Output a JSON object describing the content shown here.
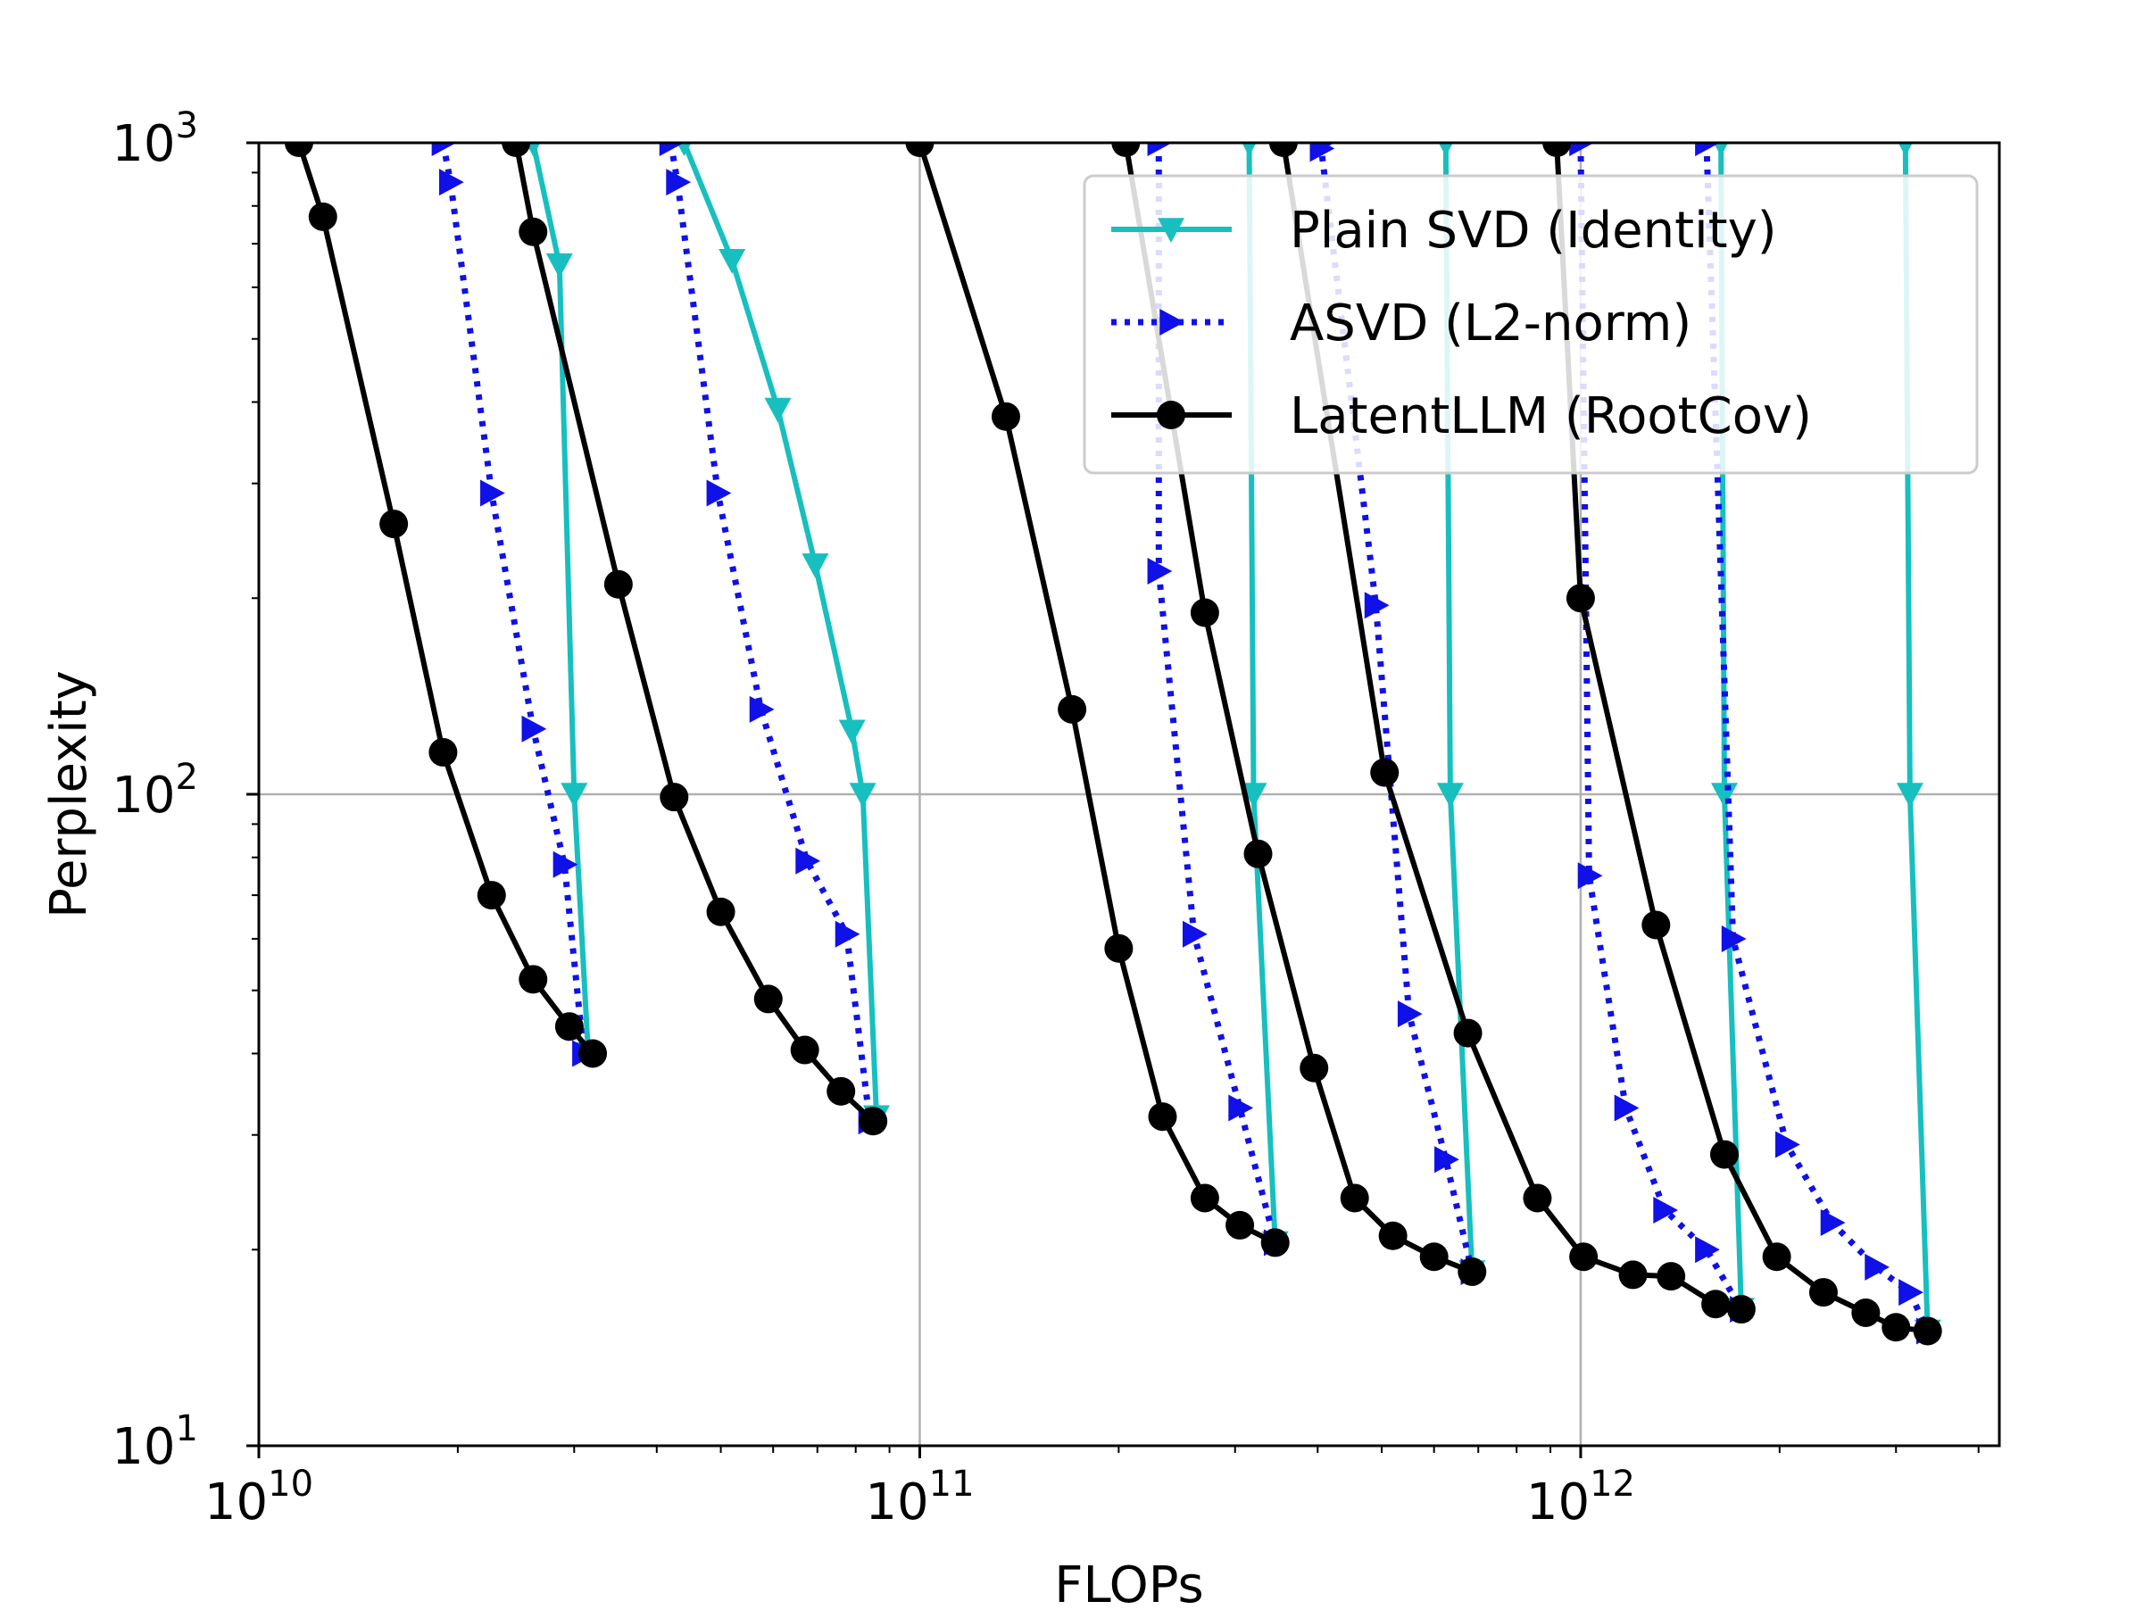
{
  "chart_data": {
    "type": "line",
    "title": "",
    "xlabel": "FLOPs",
    "ylabel": "Perplexity",
    "xscale": "log",
    "yscale": "log",
    "xlim": [
      10000000000.0,
      4300000000000.0
    ],
    "ylim": [
      10,
      1000
    ],
    "grid": true,
    "legend_position": "top-right",
    "x_ticks": [
      {
        "base": "10",
        "exp": "10",
        "value": 10000000000.0
      },
      {
        "base": "10",
        "exp": "11",
        "value": 100000000000.0
      },
      {
        "base": "10",
        "exp": "12",
        "value": 1000000000000.0
      }
    ],
    "y_ticks": [
      {
        "base": "10",
        "exp": "1",
        "value": 10
      },
      {
        "base": "10",
        "exp": "2",
        "value": 100
      },
      {
        "base": "10",
        "exp": "3",
        "value": 1000
      }
    ],
    "series": [
      {
        "name": "Plain SVD (Identity)",
        "color": "#17bfbf",
        "marker": "triangle-down",
        "style": "solid",
        "groups": [
          [
            [
              26000000000.0,
              1000
            ],
            [
              28500000000.0,
              650
            ],
            [
              30000000000.0,
              100
            ],
            [
              31500000000.0,
              40
            ]
          ],
          [
            [
              44000000000.0,
              1000
            ],
            [
              52000000000.0,
              660
            ],
            [
              61000000000.0,
              390
            ],
            [
              69500000000.0,
              225
            ],
            [
              79000000000.0,
              125
            ],
            [
              82000000000.0,
              100
            ],
            [
              86000000000.0,
              32
            ]
          ],
          [
            [
              315000000000.0,
              1000
            ],
            [
              320000000000.0,
              100
            ],
            [
              345000000000.0,
              20.5
            ]
          ],
          [
            [
              625000000000.0,
              1000
            ],
            [
              635000000000.0,
              100
            ],
            [
              685000000000.0,
              18.5
            ]
          ],
          [
            [
              1630000000000.0,
              1000
            ],
            [
              1650000000000.0,
              100
            ],
            [
              1750000000000.0,
              16.2
            ]
          ],
          [
            [
              3100000000000.0,
              1000
            ],
            [
              3150000000000.0,
              100
            ],
            [
              3350000000000.0,
              15
            ]
          ]
        ]
      },
      {
        "name": "ASVD (L2-norm)",
        "color": "#1010e8",
        "marker": "triangle-right",
        "style": "dotted",
        "groups": [
          [
            [
              19000000000.0,
              1000
            ],
            [
              19500000000.0,
              870
            ],
            [
              22500000000.0,
              290
            ],
            [
              26000000000.0,
              126
            ],
            [
              29000000000.0,
              78
            ],
            [
              31000000000.0,
              40
            ]
          ],
          [
            [
              42000000000.0,
              1000
            ],
            [
              43000000000.0,
              870
            ],
            [
              49500000000.0,
              290
            ],
            [
              57500000000.0,
              135
            ],
            [
              67500000000.0,
              79
            ],
            [
              77500000000.0,
              61
            ],
            [
              84000000000.0,
              31.5
            ]
          ],
          [
            [
              230000000000.0,
              1000
            ],
            [
              230000000000.0,
              220
            ],
            [
              260000000000.0,
              61
            ],
            [
              305000000000.0,
              33
            ],
            [
              345000000000.0,
              20.5
            ]
          ],
          [
            [
              405000000000.0,
              1000
            ],
            [
              405000000000.0,
              980
            ],
            [
              490000000000.0,
              195
            ],
            [
              550000000000.0,
              46
            ],
            [
              625000000000.0,
              27.5
            ],
            [
              685000000000.0,
              18.5
            ]
          ],
          [
            [
              1000000000000.0,
              1000
            ],
            [
              1030000000000.0,
              75
            ],
            [
              1170000000000.0,
              33
            ],
            [
              1340000000000.0,
              23
            ],
            [
              1550000000000.0,
              20
            ],
            [
              1750000000000.0,
              16.2
            ]
          ],
          [
            [
              1550000000000.0,
              1000
            ],
            [
              1700000000000.0,
              60
            ],
            [
              2050000000000.0,
              29
            ],
            [
              2400000000000.0,
              22
            ],
            [
              2800000000000.0,
              18.8
            ],
            [
              3150000000000.0,
              17.2
            ],
            [
              3350000000000.0,
              15
            ]
          ]
        ]
      },
      {
        "name": "LatentLLM (RootCov)",
        "color": "#000000",
        "marker": "circle",
        "style": "solid",
        "groups": [
          [
            [
              11500000000.0,
              1000
            ],
            [
              12500000000.0,
              770
            ],
            [
              16000000000.0,
              260
            ],
            [
              19000000000.0,
              116
            ],
            [
              22500000000.0,
              70
            ],
            [
              26000000000.0,
              52
            ],
            [
              29500000000.0,
              44
            ],
            [
              32000000000.0,
              40
            ]
          ],
          [
            [
              24500000000.0,
              1000
            ],
            [
              26000000000.0,
              730
            ],
            [
              35000000000.0,
              210
            ],
            [
              42500000000.0,
              99
            ],
            [
              50000000000.0,
              66
            ],
            [
              59000000000.0,
              48.5
            ],
            [
              67000000000.0,
              40.5
            ],
            [
              76000000000.0,
              35
            ],
            [
              85000000000.0,
              31.5
            ]
          ],
          [
            [
              100000000000.0,
              1000
            ],
            [
              135000000000.0,
              380
            ],
            [
              170000000000.0,
              135
            ],
            [
              200000000000.0,
              58
            ],
            [
              233000000000.0,
              32
            ],
            [
              270000000000.0,
              24
            ],
            [
              305000000000.0,
              21.8
            ],
            [
              345000000000.0,
              20.5
            ]
          ],
          [
            [
              205000000000.0,
              1000
            ],
            [
              270000000000.0,
              190
            ],
            [
              325000000000.0,
              81
            ],
            [
              395000000000.0,
              38
            ],
            [
              455000000000.0,
              24
            ],
            [
              520000000000.0,
              21
            ],
            [
              600000000000.0,
              19.5
            ],
            [
              685000000000.0,
              18.5
            ]
          ],
          [
            [
              355000000000.0,
              1000
            ],
            [
              505000000000.0,
              108
            ],
            [
              675000000000.0,
              43
            ],
            [
              860000000000.0,
              24
            ],
            [
              1010000000000.0,
              19.5
            ],
            [
              1200000000000.0,
              18.3
            ],
            [
              1370000000000.0,
              18.2
            ],
            [
              1600000000000.0,
              16.5
            ],
            [
              1750000000000.0,
              16.2
            ]
          ],
          [
            [
              920000000000.0,
              1000
            ],
            [
              1000000000000.0,
              200
            ],
            [
              1300000000000.0,
              63
            ],
            [
              1650000000000.0,
              28
            ],
            [
              1980000000000.0,
              19.5
            ],
            [
              2330000000000.0,
              17.2
            ],
            [
              2700000000000.0,
              16
            ],
            [
              3000000000000.0,
              15.2
            ],
            [
              3350000000000.0,
              15
            ]
          ]
        ]
      }
    ]
  }
}
